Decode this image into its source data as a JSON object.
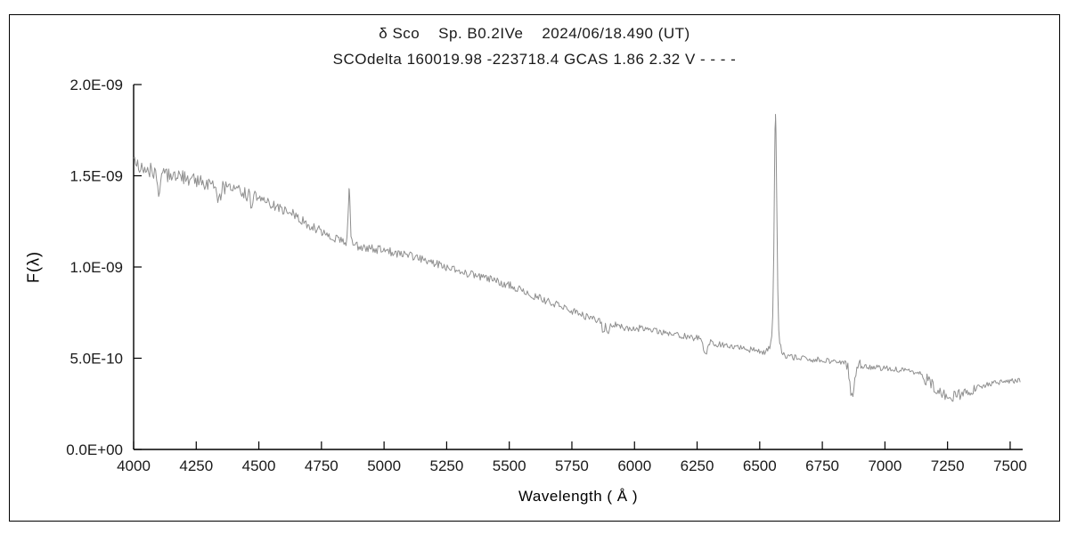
{
  "chart_data": {
    "type": "line",
    "title": "δ Sco    Sp. B0.2IVe    2024/06/18.490 (UT)",
    "subtitle": "SCOdelta 160019.98 -223718.4 GCAS 1.86 2.32 V - - - -",
    "xlabel": "Wavelength ( Å )",
    "ylabel": "F(λ)",
    "xlim": [
      4000,
      7550
    ],
    "ylim_1e10": [
      0,
      20
    ],
    "flux_scale": "1e-10",
    "x_ticks": [
      4000,
      4250,
      4500,
      4750,
      5000,
      5250,
      5500,
      5750,
      6000,
      6250,
      6500,
      6750,
      7000,
      7250,
      7500
    ],
    "y_ticks": [
      {
        "value_1e10": 0,
        "label": "0.0E+00"
      },
      {
        "value_1e10": 5,
        "label": "5.0E-10"
      },
      {
        "value_1e10": 10,
        "label": "1.0E-09"
      },
      {
        "value_1e10": 15,
        "label": "1.5E-09"
      },
      {
        "value_1e10": 20,
        "label": "2.0E-09"
      }
    ],
    "line_color": "#8f8f8f",
    "axis_color": "#000000",
    "background": "#ffffff",
    "continuum_1e10": [
      [
        4000,
        15.8
      ],
      [
        4060,
        15.3
      ],
      [
        4120,
        15.1
      ],
      [
        4200,
        14.9
      ],
      [
        4300,
        14.5
      ],
      [
        4400,
        14.2
      ],
      [
        4500,
        13.8
      ],
      [
        4570,
        13.3
      ],
      [
        4640,
        12.9
      ],
      [
        4700,
        12.3
      ],
      [
        4760,
        11.9
      ],
      [
        4820,
        11.5
      ],
      [
        4880,
        11.2
      ],
      [
        4950,
        11.0
      ],
      [
        5000,
        10.9
      ],
      [
        5100,
        10.6
      ],
      [
        5200,
        10.2
      ],
      [
        5300,
        9.8
      ],
      [
        5400,
        9.4
      ],
      [
        5500,
        9.0
      ],
      [
        5600,
        8.4
      ],
      [
        5700,
        7.9
      ],
      [
        5800,
        7.3
      ],
      [
        5870,
        7.0
      ],
      [
        5950,
        6.7
      ],
      [
        6050,
        6.6
      ],
      [
        6150,
        6.3
      ],
      [
        6250,
        6.1
      ],
      [
        6350,
        5.7
      ],
      [
        6450,
        5.5
      ],
      [
        6550,
        5.3
      ],
      [
        6650,
        5.0
      ],
      [
        6750,
        4.9
      ],
      [
        6850,
        4.7
      ],
      [
        6950,
        4.5
      ],
      [
        7050,
        4.4
      ],
      [
        7120,
        4.2
      ],
      [
        7170,
        3.8
      ],
      [
        7220,
        3.1
      ],
      [
        7270,
        2.9
      ],
      [
        7320,
        3.1
      ],
      [
        7370,
        3.4
      ],
      [
        7420,
        3.6
      ],
      [
        7470,
        3.7
      ],
      [
        7540,
        3.8
      ]
    ],
    "emission_lines_1e10": [
      {
        "center": 4861,
        "amp": 2.9,
        "sigma": 4
      },
      {
        "center": 6563,
        "amp": 11.3,
        "sigma": 5
      },
      {
        "center": 6563,
        "amp": 1.6,
        "sigma": 13
      }
    ],
    "absorption_lines_1e10": [
      {
        "center": 4101,
        "depth": 1.4,
        "sigma": 6
      },
      {
        "center": 4340,
        "depth": 0.9,
        "sigma": 6
      },
      {
        "center": 4471,
        "depth": 0.5,
        "sigma": 5
      },
      {
        "center": 5876,
        "depth": 0.7,
        "sigma": 4
      },
      {
        "center": 5893,
        "depth": 0.6,
        "sigma": 4
      },
      {
        "center": 6283,
        "depth": 0.8,
        "sigma": 6
      },
      {
        "center": 6869,
        "depth": 1.65,
        "sigma": 9
      }
    ],
    "noise_1e10": 0.28,
    "noisy_bands": [
      [
        6840,
        6910
      ],
      [
        7140,
        7360
      ]
    ]
  }
}
